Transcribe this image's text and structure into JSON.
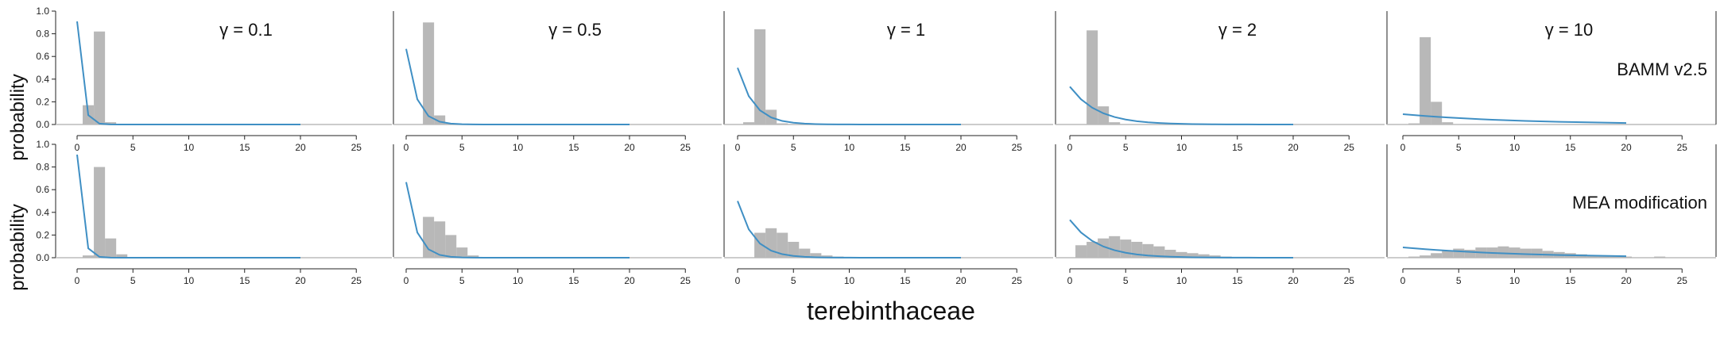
{
  "figure": {
    "xlabel": "terebinthaceae",
    "ylabel": "probability",
    "row_labels": [
      "BAMM v2.5",
      "MEA modification"
    ]
  },
  "chart_data": {
    "type": "bar",
    "xlim": [
      -1,
      28
    ],
    "ylim": [
      0,
      1
    ],
    "x_ticks": [
      0,
      5,
      10,
      15,
      20,
      25
    ],
    "y_ticks": [
      0.0,
      0.2,
      0.4,
      0.6,
      0.8,
      1.0
    ],
    "y_tick_labels": [
      "0.0",
      "0.2",
      "0.4",
      "0.6",
      "0.8",
      "1.0"
    ],
    "colors": {
      "bars": "#b8b8b8",
      "prior_line": "#3f8fc4",
      "baseline": "#bcbcbc"
    },
    "gammas": [
      0.1,
      0.5,
      1,
      2,
      10
    ],
    "panel_titles": [
      "γ = 0.1",
      "γ = 0.5",
      "γ = 1",
      "γ = 2",
      "γ = 10"
    ],
    "panels": [
      {
        "row": 0,
        "col": 0,
        "bars": [
          [
            1,
            0.17
          ],
          [
            2,
            0.82
          ],
          [
            3,
            0.02
          ]
        ]
      },
      {
        "row": 0,
        "col": 1,
        "bars": [
          [
            2,
            0.9
          ],
          [
            3,
            0.08
          ],
          [
            4,
            0.01
          ]
        ]
      },
      {
        "row": 0,
        "col": 2,
        "bars": [
          [
            1,
            0.02
          ],
          [
            2,
            0.84
          ],
          [
            3,
            0.13
          ],
          [
            4,
            0.01
          ]
        ]
      },
      {
        "row": 0,
        "col": 3,
        "bars": [
          [
            2,
            0.83
          ],
          [
            3,
            0.16
          ],
          [
            4,
            0.02
          ]
        ]
      },
      {
        "row": 0,
        "col": 4,
        "bars": [
          [
            1,
            0.01
          ],
          [
            2,
            0.77
          ],
          [
            3,
            0.2
          ],
          [
            4,
            0.02
          ]
        ]
      },
      {
        "row": 1,
        "col": 0,
        "bars": [
          [
            1,
            0.02
          ],
          [
            2,
            0.8
          ],
          [
            3,
            0.17
          ],
          [
            4,
            0.03
          ]
        ]
      },
      {
        "row": 1,
        "col": 1,
        "bars": [
          [
            2,
            0.36
          ],
          [
            3,
            0.32
          ],
          [
            4,
            0.2
          ],
          [
            5,
            0.09
          ],
          [
            6,
            0.02
          ]
        ]
      },
      {
        "row": 1,
        "col": 2,
        "bars": [
          [
            2,
            0.22
          ],
          [
            3,
            0.26
          ],
          [
            4,
            0.22
          ],
          [
            5,
            0.14
          ],
          [
            6,
            0.08
          ],
          [
            7,
            0.04
          ],
          [
            8,
            0.02
          ],
          [
            9,
            0.01
          ]
        ]
      },
      {
        "row": 1,
        "col": 3,
        "bars": [
          [
            1,
            0.11
          ],
          [
            2,
            0.14
          ],
          [
            3,
            0.17
          ],
          [
            4,
            0.19
          ],
          [
            5,
            0.16
          ],
          [
            6,
            0.14
          ],
          [
            7,
            0.12
          ],
          [
            8,
            0.1
          ],
          [
            9,
            0.07
          ],
          [
            10,
            0.05
          ],
          [
            11,
            0.04
          ],
          [
            12,
            0.03
          ],
          [
            13,
            0.02
          ],
          [
            14,
            0.01
          ]
        ]
      },
      {
        "row": 1,
        "col": 4,
        "bars": [
          [
            1,
            0.01
          ],
          [
            2,
            0.02
          ],
          [
            3,
            0.04
          ],
          [
            4,
            0.06
          ],
          [
            5,
            0.08
          ],
          [
            6,
            0.07
          ],
          [
            7,
            0.09
          ],
          [
            8,
            0.09
          ],
          [
            9,
            0.1
          ],
          [
            10,
            0.09
          ],
          [
            11,
            0.08
          ],
          [
            12,
            0.08
          ],
          [
            13,
            0.06
          ],
          [
            14,
            0.05
          ],
          [
            15,
            0.04
          ],
          [
            16,
            0.03
          ],
          [
            17,
            0.02
          ],
          [
            18,
            0.02
          ],
          [
            19,
            0.01
          ],
          [
            20,
            0.01
          ],
          [
            23,
            0.01
          ]
        ]
      }
    ]
  }
}
